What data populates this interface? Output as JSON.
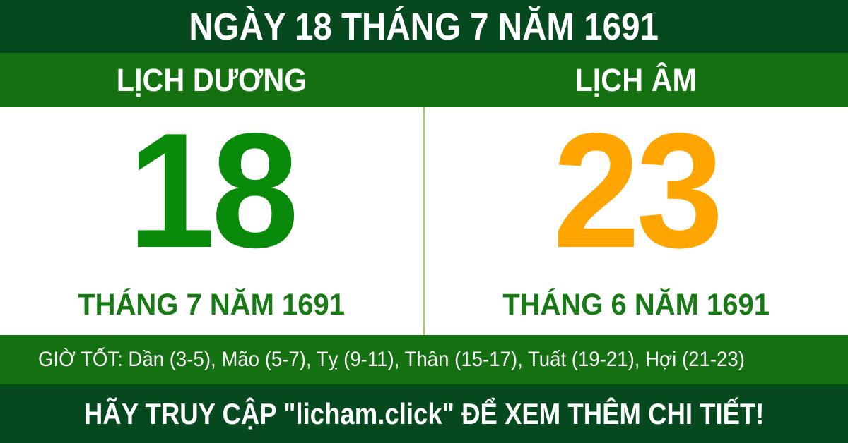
{
  "colors": {
    "dark_green": "#07491f",
    "medium_green": "#157012",
    "solar_day_green": "#0a8a0a",
    "lunar_day_orange": "#ffa502",
    "month_label_green": "#187a15",
    "divider_light_green": "#9fd464",
    "text_white": "#ffffff"
  },
  "header": {
    "title": "NGÀY 18 THÁNG 7 NĂM 1691"
  },
  "calendar": {
    "solar": {
      "label": "LỊCH DƯƠNG",
      "day": "18",
      "month_year": "THÁNG 7 NĂM 1691"
    },
    "lunar": {
      "label": "LỊCH ÂM",
      "day": "23",
      "month_year": "THÁNG 6 NĂM 1691"
    }
  },
  "good_hours": {
    "text": "GIỜ TỐT: Dần (3-5), Mão (5-7), Tỵ (9-11), Thân (15-17), Tuất (19-21), Hợi (21-23)"
  },
  "footer": {
    "text": "HÃY TRUY CẬP \"licham.click\" ĐỂ XEM THÊM CHI TIẾT!"
  }
}
